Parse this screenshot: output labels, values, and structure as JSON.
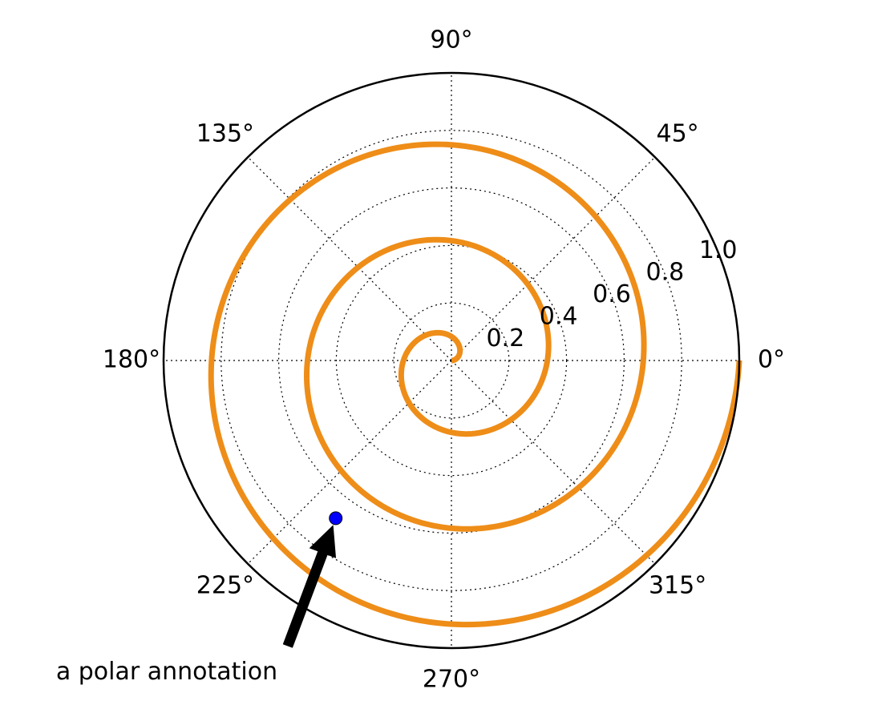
{
  "chart_data": {
    "type": "line",
    "projection": "polar",
    "title": "",
    "grid": true,
    "theta_ticks": [
      "0°",
      "45°",
      "90°",
      "135°",
      "180°",
      "225°",
      "270°",
      "315°"
    ],
    "theta_tick_values": [
      0,
      45,
      90,
      135,
      180,
      225,
      270,
      315
    ],
    "r_ticks": [
      "0.2",
      "0.4",
      "0.6",
      "0.8",
      "1.0"
    ],
    "r_tick_values": [
      0.2,
      0.4,
      0.6,
      0.8,
      1.0
    ],
    "rlim": [
      0,
      1.0
    ],
    "series": [
      {
        "equation": "r = theta / (6*pi)",
        "theta_range_radians": [
          0,
          18.85
        ],
        "color": "#ee8d18"
      }
    ],
    "annotation": {
      "text": "a polar annotation",
      "point_theta_radians": 4.08,
      "point_r": 0.68,
      "marker_color": "#0000ff",
      "arrow_color": "#000000"
    }
  }
}
